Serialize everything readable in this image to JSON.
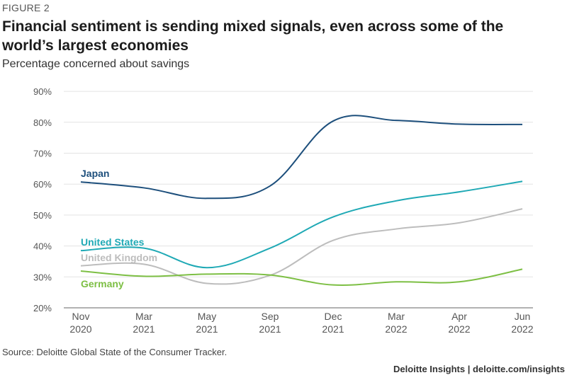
{
  "figure_label": "FIGURE 2",
  "title": "Financial sentiment is sending mixed signals, even across some of the world’s largest economies",
  "subtitle": "Percentage concerned about savings",
  "source": "Source: Deloitte Global State of the Consumer Tracker.",
  "brand": "Deloitte Insights | deloitte.com/insights",
  "chart_data": {
    "type": "line",
    "title": "Financial sentiment is sending mixed signals, even across some of the world’s largest economies",
    "ylabel": "Percentage concerned about savings",
    "xlabel": "",
    "categories": [
      [
        "Nov",
        "2020"
      ],
      [
        "Mar",
        "2021"
      ],
      [
        "May",
        "2021"
      ],
      [
        "Sep",
        "2021"
      ],
      [
        "Dec",
        "2021"
      ],
      [
        "Mar",
        "2022"
      ],
      [
        "Apr",
        "2022"
      ],
      [
        "Jun",
        "2022"
      ]
    ],
    "ylim": [
      20,
      90
    ],
    "yticks": [
      "20%",
      "30%",
      "40%",
      "50%",
      "60%",
      "70%",
      "80%",
      "90%"
    ],
    "grid": true,
    "legend": "inline-labels-left",
    "series": [
      {
        "name": "Japan",
        "color": "#1d4f7c",
        "values": [
          60.7,
          58.8,
          55.4,
          59.4,
          80.4,
          80.6,
          79.4,
          79.3
        ]
      },
      {
        "name": "United States",
        "color": "#1fa9b5",
        "values": [
          38.5,
          39.3,
          33.0,
          39.3,
          49.4,
          54.6,
          57.5,
          60.9
        ]
      },
      {
        "name": "United Kingdom",
        "color": "#bdbdbd",
        "values": [
          33.6,
          34.1,
          27.9,
          30.5,
          41.8,
          45.5,
          47.5,
          52.0
        ]
      },
      {
        "name": "Germany",
        "color": "#7dbf44",
        "values": [
          31.9,
          30.2,
          30.9,
          30.6,
          27.4,
          28.4,
          28.4,
          32.5
        ]
      }
    ]
  }
}
